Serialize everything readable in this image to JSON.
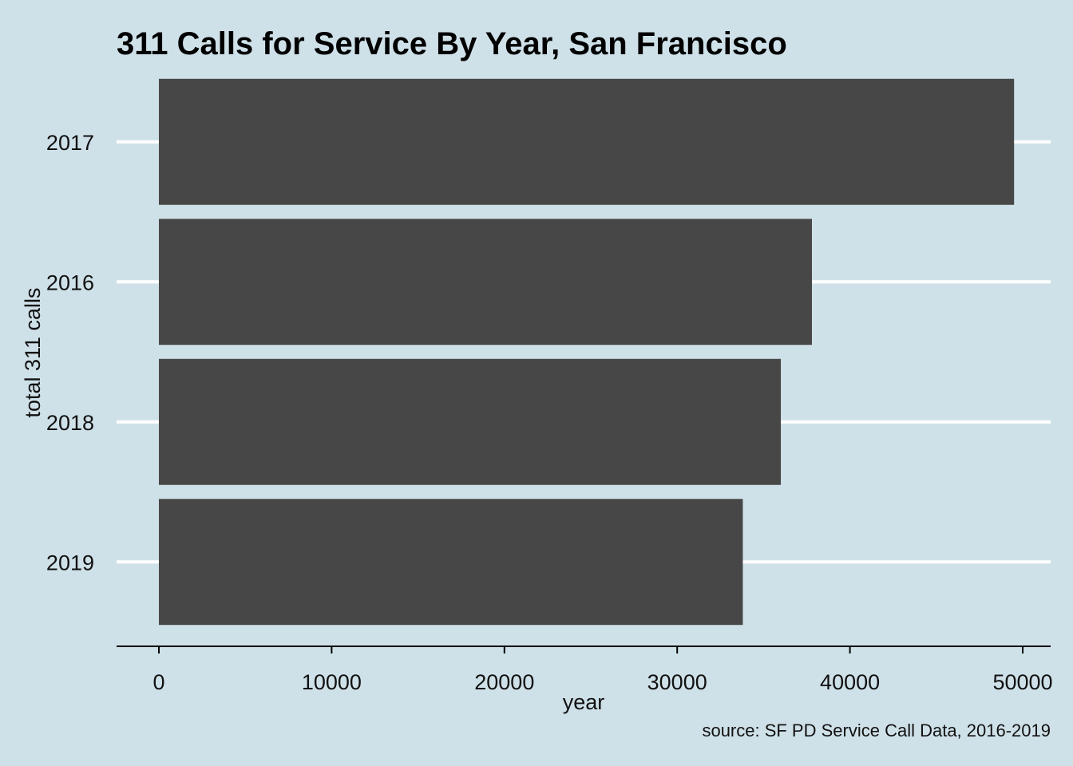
{
  "chart_data": {
    "type": "bar",
    "orientation": "horizontal",
    "title": "311 Calls for Service By Year, San Francisco",
    "xlabel": "year",
    "ylabel": "total 311 calls",
    "caption": "source: SF PD Service Call Data, 2016-2019",
    "categories": [
      "2017",
      "2016",
      "2018",
      "2019"
    ],
    "values": [
      49500,
      37800,
      36000,
      33800
    ],
    "xlim": [
      0,
      52500
    ],
    "xticks": [
      0,
      10000,
      20000,
      30000,
      40000,
      50000
    ],
    "xtick_labels": [
      "0",
      "10000",
      "20000",
      "30000",
      "40000",
      "50000"
    ],
    "grid": "horizontal major",
    "legend": "none"
  },
  "colors": {
    "background": "#cfe1e8",
    "bar": "#474747",
    "grid": "#ffffff",
    "axis": "#000000"
  }
}
